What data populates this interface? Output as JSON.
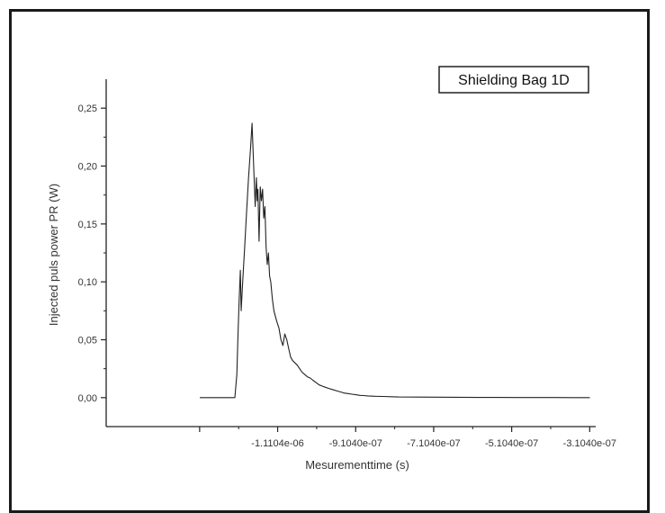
{
  "chart_data": {
    "type": "line",
    "title": "",
    "xlabel": "Mesurementtime (s)",
    "ylabel": "Injected puls power PR (W)",
    "legend": {
      "label": "Shielding Bag 1D",
      "placement": "top-right"
    },
    "grid": false,
    "xlim": [
      -1.55e-06,
      -2.95e-07
    ],
    "ylim": [
      -0.025,
      0.275
    ],
    "x_ticks": [
      {
        "value": -1.1104e-06,
        "label": "-1.1104e-06"
      },
      {
        "value": -9.104e-07,
        "label": "-9.1040e-07"
      },
      {
        "value": -7.104e-07,
        "label": "-7.1040e-07"
      },
      {
        "value": -5.104e-07,
        "label": "-5.1040e-07"
      },
      {
        "value": -3.104e-07,
        "label": "-3.1040e-07"
      }
    ],
    "y_ticks": [
      {
        "value": 0.0,
        "label": "0,00"
      },
      {
        "value": 0.05,
        "label": "0,05"
      },
      {
        "value": 0.1,
        "label": "0,10"
      },
      {
        "value": 0.15,
        "label": "0,15"
      },
      {
        "value": 0.2,
        "label": "0,20"
      },
      {
        "value": 0.25,
        "label": "0,25"
      }
    ],
    "series": [
      {
        "color": "#222222",
        "x": [
          -1.31e-06,
          -1.22e-06,
          -1.215e-06,
          -1.212e-06,
          -1.209e-06,
          -1.206e-06,
          -1.204e-06,
          -1.2e-06,
          -1.195e-06,
          -1.19e-06,
          -1.185e-06,
          -1.18e-06,
          -1.176e-06,
          -1.172e-06,
          -1.168e-06,
          -1.165e-06,
          -1.163e-06,
          -1.161e-06,
          -1.158e-06,
          -1.155e-06,
          -1.152e-06,
          -1.149e-06,
          -1.146e-06,
          -1.143e-06,
          -1.14e-06,
          -1.137e-06,
          -1.134e-06,
          -1.131e-06,
          -1.128e-06,
          -1.124e-06,
          -1.12e-06,
          -1.116e-06,
          -1.112e-06,
          -1.107e-06,
          -1.102e-06,
          -1.097e-06,
          -1.092e-06,
          -1.087e-06,
          -1.082e-06,
          -1.077e-06,
          -1.072e-06,
          -1.066e-06,
          -1.06e-06,
          -1.054e-06,
          -1.048e-06,
          -1.041e-06,
          -1.034e-06,
          -1.027e-06,
          -1.02e-06,
          -1.012e-06,
          -1.004e-06,
          -9.96e-07,
          -9.88e-07,
          -9.8e-07,
          -9.7e-07,
          -9.6e-07,
          -9.5e-07,
          -9.4e-07,
          -9.3e-07,
          -9.2e-07,
          -9.1e-07,
          -9e-07,
          -8.9e-07,
          -8.8e-07,
          -8.6e-07,
          -8.4e-07,
          -8.2e-07,
          -8e-07,
          -7.5e-07,
          -7e-07,
          -6.5e-07,
          -6e-07,
          -5.5e-07,
          -5e-07,
          -4.5e-07,
          -4e-07,
          -3.5e-07,
          -3.1e-07
        ],
        "y": [
          0.0,
          0.0,
          0.02,
          0.055,
          0.085,
          0.11,
          0.075,
          0.1,
          0.13,
          0.16,
          0.19,
          0.215,
          0.237,
          0.2,
          0.165,
          0.19,
          0.17,
          0.18,
          0.135,
          0.182,
          0.17,
          0.18,
          0.155,
          0.165,
          0.13,
          0.115,
          0.125,
          0.105,
          0.1,
          0.085,
          0.075,
          0.07,
          0.065,
          0.06,
          0.05,
          0.045,
          0.055,
          0.05,
          0.042,
          0.035,
          0.032,
          0.03,
          0.028,
          0.025,
          0.022,
          0.02,
          0.018,
          0.017,
          0.015,
          0.013,
          0.011,
          0.01,
          0.009,
          0.008,
          0.007,
          0.006,
          0.005,
          0.004,
          0.0035,
          0.003,
          0.0025,
          0.002,
          0.0018,
          0.0015,
          0.0012,
          0.001,
          0.0008,
          0.0006,
          0.0005,
          0.0004,
          0.0003,
          0.0002,
          0.0002,
          0.0001,
          0.0001,
          0.0001,
          0.0,
          0.0
        ]
      }
    ]
  }
}
